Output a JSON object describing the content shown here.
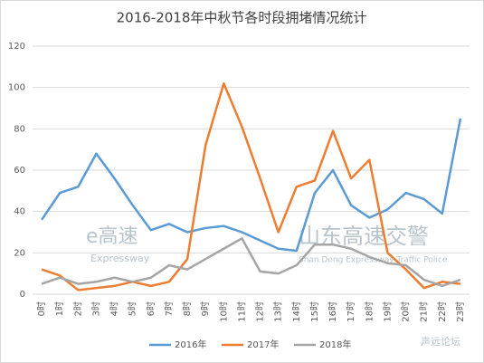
{
  "chart_data": {
    "type": "line",
    "title": "2016-2018年中秋节各时段拥堵情况统计",
    "categories": [
      "0时",
      "1时",
      "2时",
      "3时",
      "4时",
      "5时",
      "6时",
      "7时",
      "8时",
      "9时",
      "10时",
      "11时",
      "12时",
      "13时",
      "14时",
      "15时",
      "16时",
      "17时",
      "18时",
      "19时",
      "20时",
      "21时",
      "22时",
      "23时"
    ],
    "series": [
      {
        "name": "2016年",
        "color": "#5b9bd5",
        "values": [
          36,
          49,
          52,
          68,
          56,
          43,
          31,
          34,
          30,
          32,
          33,
          30,
          26,
          22,
          21,
          49,
          60,
          43,
          37,
          41,
          49,
          46,
          39,
          85
        ]
      },
      {
        "name": "2017年",
        "color": "#ed7d31",
        "values": [
          12,
          9,
          2,
          3,
          4,
          6,
          4,
          6,
          17,
          72,
          102,
          81,
          56,
          30,
          52,
          55,
          79,
          56,
          65,
          20,
          12,
          3,
          6,
          5
        ]
      },
      {
        "name": "2018年",
        "color": "#a5a5a5",
        "values": [
          5,
          8,
          5,
          6,
          8,
          6,
          8,
          14,
          12,
          17,
          22,
          27,
          11,
          10,
          14,
          24,
          24,
          22,
          18,
          15,
          14,
          7,
          4,
          7
        ]
      }
    ],
    "ylim": [
      0,
      120
    ],
    "yticks": [
      0,
      20,
      40,
      60,
      80,
      100,
      120
    ],
    "grid": true,
    "legend": "bottom",
    "annotations": [
      "e高速",
      "Expressway",
      "山东高速交警",
      "Shan Dong Expressway Traffic Police",
      "声远论坛"
    ]
  }
}
